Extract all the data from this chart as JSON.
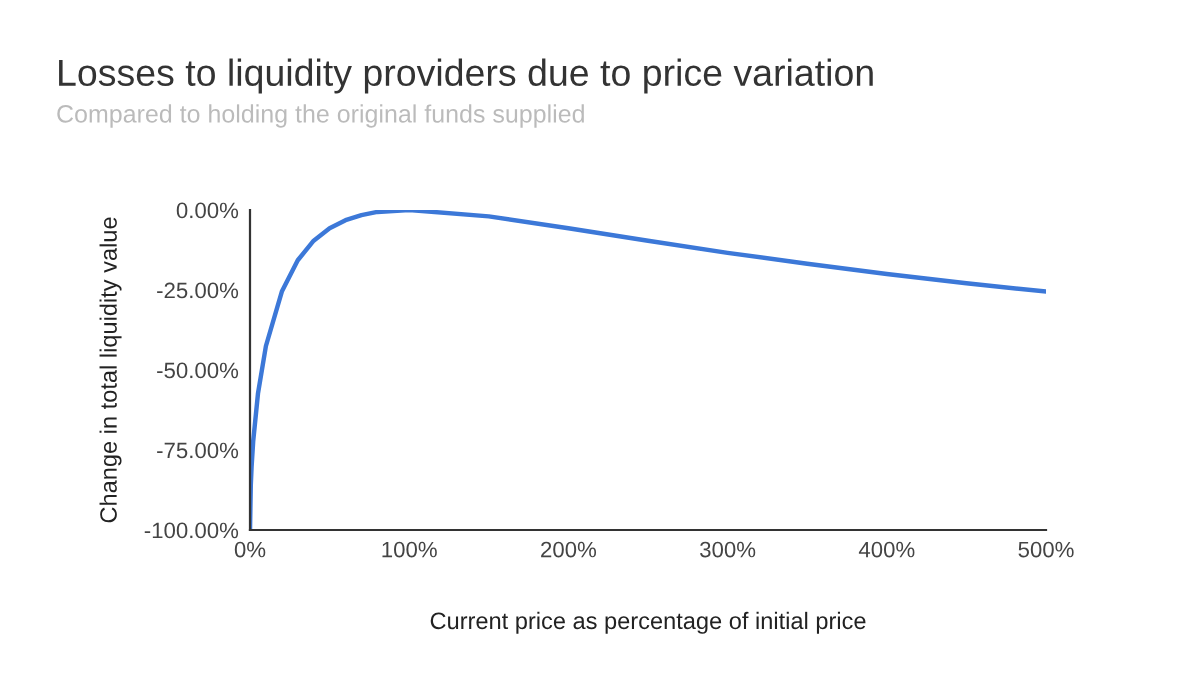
{
  "chart_data": {
    "type": "line",
    "title": "Losses to liquidity providers due to price variation",
    "subtitle": "Compared to holding the original funds supplied",
    "xlabel": "Current price as percentage of initial price",
    "ylabel": "Change in total liquidity value",
    "series": [
      {
        "color": "#3c78d8",
        "x": [
          0,
          0.5,
          1,
          2,
          5,
          10,
          20,
          30,
          40,
          50,
          60,
          70,
          80,
          100,
          150,
          200,
          250,
          300,
          350,
          400,
          450,
          500
        ],
        "values": [
          -100,
          -85.9,
          -80.2,
          -72.3,
          -57.4,
          -42.5,
          -25.5,
          -15.7,
          -9.6,
          -5.7,
          -3.2,
          -1.6,
          -0.6,
          0,
          -2.0,
          -5.7,
          -9.6,
          -13.4,
          -16.8,
          -20.0,
          -22.9,
          -25.5
        ]
      }
    ],
    "xlim": [
      0,
      500
    ],
    "ylim": [
      -100,
      0
    ],
    "xticks": [
      {
        "value": 0,
        "label": "0%"
      },
      {
        "value": 100,
        "label": "100%"
      },
      {
        "value": 200,
        "label": "200%"
      },
      {
        "value": 300,
        "label": "300%"
      },
      {
        "value": 400,
        "label": "400%"
      },
      {
        "value": 500,
        "label": "500%"
      }
    ],
    "yticks": [
      {
        "value": -100,
        "label": "-100.00%"
      },
      {
        "value": -75,
        "label": "-75.00%"
      },
      {
        "value": -50,
        "label": "-50.00%"
      },
      {
        "value": -25,
        "label": "-25.00%"
      },
      {
        "value": 0,
        "label": "0.00%"
      }
    ],
    "grid": false,
    "legend": false,
    "marker": "none",
    "line_style": "solid"
  }
}
